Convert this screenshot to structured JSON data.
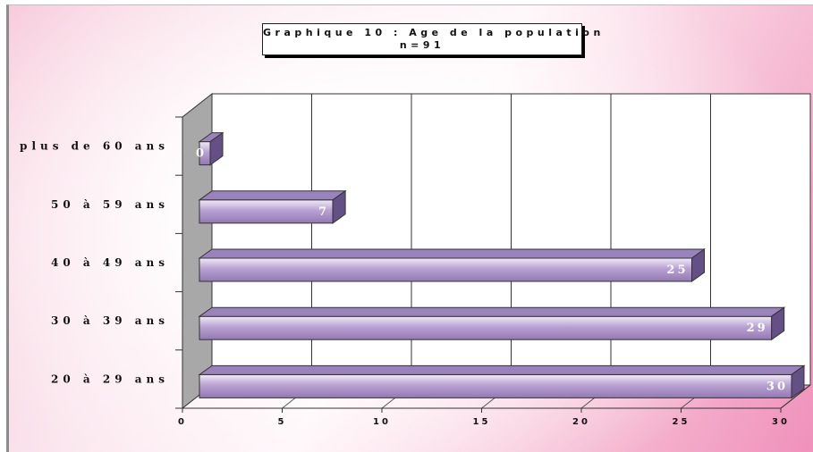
{
  "chart_data": {
    "type": "bar",
    "orientation": "horizontal",
    "style": "3d",
    "title": "Graphique 10 : Age de la population",
    "subtitle": "n=91",
    "categories": [
      "20 à 29 ans",
      "30 à 39 ans",
      "40 à 49 ans",
      "50 à 59 ans",
      "plus de 60 ans"
    ],
    "values": [
      30,
      29,
      25,
      7,
      0
    ],
    "xlabel": "",
    "ylabel": "",
    "xlim": [
      0,
      30
    ],
    "xticks": [
      "0",
      "5",
      "10",
      "15",
      "20",
      "25",
      "30"
    ],
    "data_labels": [
      "30",
      "29",
      "25",
      "7",
      "0"
    ],
    "grid": true,
    "legend": "none",
    "colors": {
      "bar_light": "#f1eaf6",
      "bar_mid": "#b9a2d2",
      "bar_dark": "#9378b4",
      "bar_top": "#9a82bd",
      "bar_side": "#644f86",
      "side_wall": "#a8a8a8",
      "plot_wall": "#ffffff"
    }
  }
}
